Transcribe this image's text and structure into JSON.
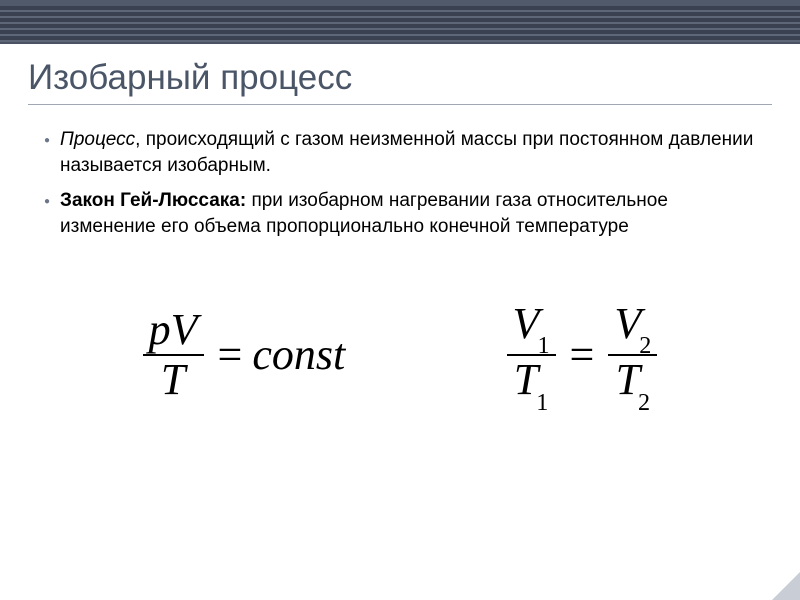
{
  "colors": {
    "border_dark": "#505a6b",
    "hatch_bg": "#3a4252",
    "hatch_stripe": "#5e6778",
    "thin_line": "#4a5364",
    "title_color": "#4a5668",
    "underline": "#a0a6b2",
    "bullet_marker": "#6b768a",
    "corner": "#c9cdd6"
  },
  "title": "Изобарный процесс",
  "bullets": [
    {
      "prefix": "Процесс",
      "prefix_style": "em",
      "rest": ", происходящий с газом неизменной массы при  постоянном давлении называется изобарным."
    },
    {
      "prefix": "Закон Гей-Люссака:",
      "prefix_style": "bold",
      "rest": " при изобарном нагревании газа относительное изменение его объема пропорционально конечной температуре"
    }
  ],
  "equations": {
    "eq1": {
      "num": "pV",
      "den": "T",
      "rhs": "const"
    },
    "eq2": {
      "l_num_base": "V",
      "l_num_sub": "1",
      "l_den_base": "T",
      "l_den_sub": "1",
      "r_num_base": "V",
      "r_num_sub": "2",
      "r_den_base": "T",
      "r_den_sub": "2"
    }
  }
}
